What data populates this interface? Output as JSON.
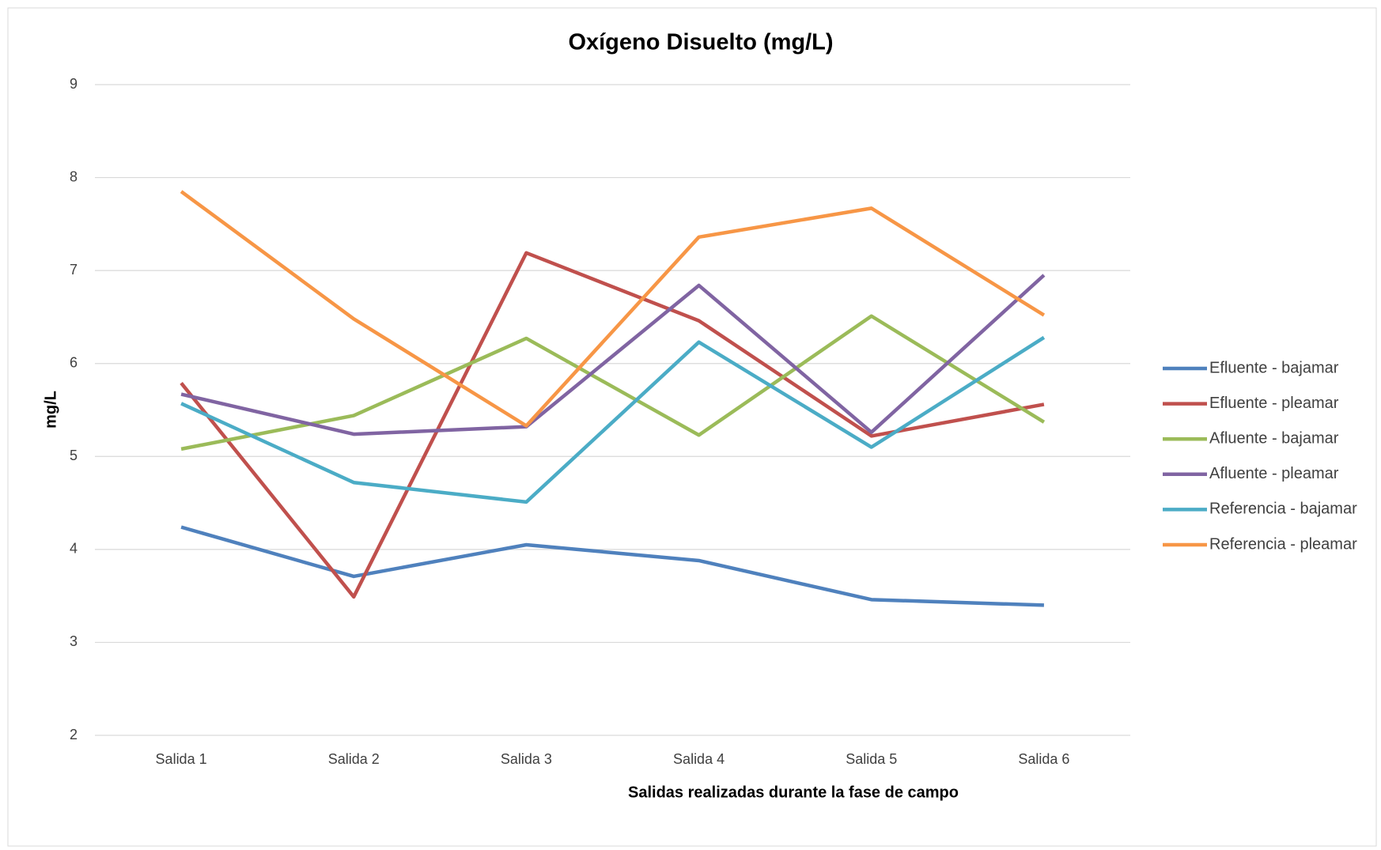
{
  "chart_data": {
    "type": "line",
    "title": "Oxígeno Disuelto (mg/L)",
    "x_label": "Salidas realizadas durante la fase de campo",
    "y_label": "mg/L",
    "categories": [
      "Salida 1",
      "Salida 2",
      "Salida 3",
      "Salida 4",
      "Salida 5",
      "Salida 6"
    ],
    "series": [
      {
        "name": "Efluente - bajamar",
        "color": "#4f81bd",
        "values": [
          4.24,
          3.71,
          4.05,
          3.88,
          3.46,
          3.4
        ]
      },
      {
        "name": "Efluente - pleamar",
        "color": "#c0504d",
        "values": [
          5.79,
          3.49,
          7.19,
          6.46,
          5.22,
          5.56
        ]
      },
      {
        "name": "Afluente - bajamar",
        "color": "#9bbb59",
        "values": [
          5.08,
          5.44,
          6.27,
          5.23,
          6.51,
          5.37
        ]
      },
      {
        "name": "Afluente - pleamar",
        "color": "#8064a2",
        "values": [
          5.67,
          5.24,
          5.32,
          6.84,
          5.26,
          6.95
        ]
      },
      {
        "name": "Referencia - bajamar",
        "color": "#4bacc6",
        "values": [
          5.57,
          4.72,
          4.51,
          6.23,
          5.1,
          6.28
        ]
      },
      {
        "name": "Referencia - pleamar",
        "color": "#f79646",
        "values": [
          7.85,
          6.48,
          5.33,
          7.36,
          7.67,
          6.52
        ]
      }
    ],
    "ylim": [
      2,
      9
    ],
    "yticks": [
      2,
      3,
      4,
      5,
      6,
      7,
      8,
      9
    ],
    "grid": true,
    "legend": "right"
  }
}
